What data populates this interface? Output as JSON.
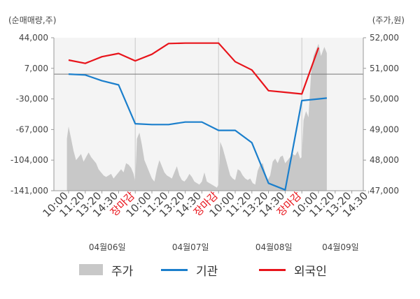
{
  "chart_data": {
    "type": "line",
    "left_axis_unit": "(순매매량,주)",
    "right_axis_unit": "(주가,원)",
    "left_ticks": [
      "44,000",
      "7,000",
      "-30,000",
      "-67,000",
      "-104,000",
      "-141,000"
    ],
    "left_tick_values": [
      44000,
      7000,
      -30000,
      -67000,
      -104000,
      -141000
    ],
    "right_ticks": [
      "52,000",
      "51,000",
      "50,000",
      "49,000",
      "48,000",
      "47,000"
    ],
    "right_tick_values": [
      52000,
      51000,
      50000,
      49000,
      48000,
      47000
    ],
    "ylim_left": [
      -141000,
      44000
    ],
    "ylim_right": [
      47000,
      52000
    ],
    "x_tick_labels": [
      "10:00",
      "11:20",
      "13:20",
      "14:30",
      "장마감",
      "10:00",
      "11:20",
      "13:20",
      "14:30",
      "장마감",
      "10:00",
      "11:20",
      "13:20",
      "14:30",
      "장마감",
      "10:00",
      "11:20",
      "13:20",
      "14:30"
    ],
    "x_tick_closing": [
      false,
      false,
      false,
      false,
      true,
      false,
      false,
      false,
      false,
      true,
      false,
      false,
      false,
      false,
      true,
      false,
      false,
      false,
      false
    ],
    "date_labels": [
      "04월06일",
      "04월07일",
      "04월08일",
      "04월09일"
    ],
    "date_positions": [
      4,
      9,
      14,
      18
    ],
    "zero_line_value": 0,
    "series": [
      {
        "name": "기관",
        "color": "#1b7fcc",
        "axis": "left",
        "x": [
          0,
          1,
          2,
          3,
          4,
          5,
          6,
          7,
          8,
          9,
          10,
          11,
          12,
          13,
          14,
          15,
          15.5
        ],
        "values": [
          0,
          -1000,
          -8000,
          -13000,
          -60000,
          -61000,
          -61000,
          -58000,
          -58000,
          -68000,
          -68000,
          -83000,
          -132000,
          -140000,
          -32000,
          -30000,
          -29000
        ]
      },
      {
        "name": "외국인",
        "color": "#e8141b",
        "axis": "left",
        "x": [
          0,
          1,
          2,
          3,
          4,
          5,
          6,
          7,
          8,
          9,
          10,
          11,
          12,
          13,
          14,
          15
        ],
        "values": [
          17000,
          13000,
          21000,
          25000,
          16000,
          24000,
          37000,
          37500,
          37500,
          37500,
          15000,
          5000,
          -20000,
          -22000,
          -24000,
          32000
        ]
      },
      {
        "name": "주가",
        "color": "#c8c8c8",
        "axis": "right",
        "type": "area",
        "x": [
          -0.1,
          0,
          0.15,
          0.3,
          0.45,
          0.6,
          0.75,
          0.9,
          1.05,
          1.2,
          1.35,
          1.5,
          1.65,
          1.8,
          1.95,
          2.1,
          2.25,
          2.4,
          2.55,
          2.7,
          2.85,
          3.0,
          3.15,
          3.3,
          3.45,
          3.6,
          3.75,
          3.9,
          4.0,
          4.1,
          4.25,
          4.4,
          4.55,
          4.7,
          4.85,
          5.0,
          5.15,
          5.3,
          5.45,
          5.6,
          5.75,
          5.9,
          6.05,
          6.2,
          6.35,
          6.5,
          6.65,
          6.8,
          6.95,
          7.1,
          7.25,
          7.4,
          7.55,
          7.7,
          7.85,
          8.0,
          8.15,
          8.3,
          8.45,
          8.6,
          8.75,
          8.9,
          9.0,
          9.1,
          9.25,
          9.4,
          9.55,
          9.7,
          9.85,
          10.0,
          10.15,
          10.3,
          10.45,
          10.6,
          10.75,
          10.9,
          11.05,
          11.2,
          11.35,
          11.5,
          11.65,
          11.8,
          11.95,
          12.1,
          12.25,
          12.4,
          12.55,
          12.7,
          12.85,
          13.0,
          13.15,
          13.3,
          13.45,
          13.6,
          13.75,
          13.9,
          14.0,
          14.1,
          14.25,
          14.4,
          14.55,
          14.7,
          14.85,
          15.0,
          15.15,
          15.35,
          15.5
        ],
        "values": [
          48700,
          49100,
          48700,
          48300,
          48000,
          48100,
          48200,
          47950,
          48100,
          48250,
          48100,
          48000,
          47900,
          47700,
          47600,
          47500,
          47450,
          47500,
          47550,
          47400,
          47500,
          47600,
          47700,
          47600,
          47900,
          47850,
          47750,
          47550,
          47300,
          48700,
          48900,
          48500,
          48000,
          47800,
          47600,
          47400,
          47300,
          47700,
          48000,
          47800,
          47600,
          47500,
          47450,
          47400,
          47600,
          47800,
          47500,
          47350,
          47300,
          47400,
          47550,
          47450,
          47300,
          47250,
          47200,
          47300,
          47600,
          47300,
          47250,
          47200,
          47150,
          47100,
          47200,
          48600,
          48400,
          48100,
          47800,
          47500,
          47400,
          47350,
          47700,
          47650,
          47500,
          47400,
          47350,
          47400,
          47250,
          47200,
          47650,
          47850,
          47900,
          47600,
          47350,
          47500,
          47950,
          48050,
          47900,
          48100,
          48150,
          47900,
          48000,
          48100,
          48200,
          48150,
          48300,
          48050,
          48100,
          49300,
          49600,
          49400,
          50800,
          51400,
          51600,
          51800,
          51400,
          51700,
          51500
        ]
      }
    ],
    "legend": [
      "주가",
      "기관",
      "외국인"
    ],
    "legend_position": "bottom"
  }
}
